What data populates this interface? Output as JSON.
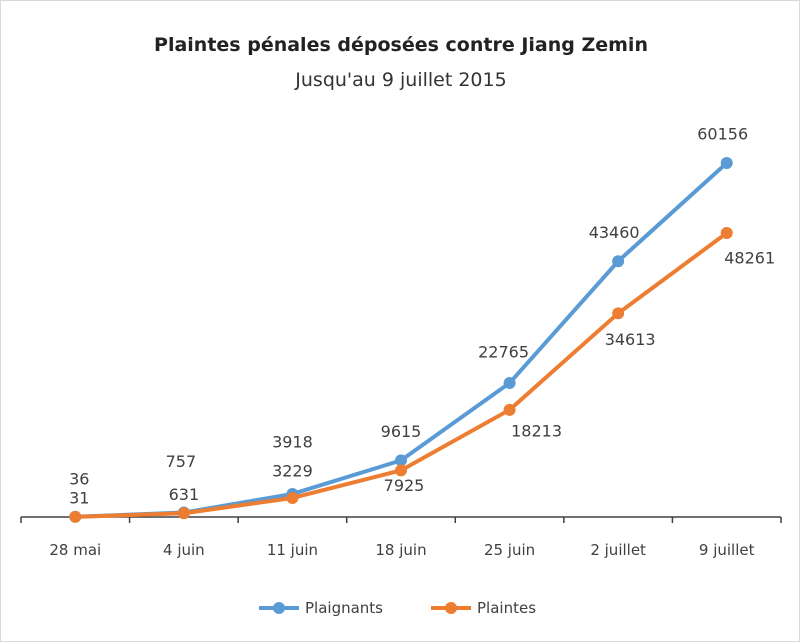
{
  "chart_data": {
    "type": "line",
    "title": "Plaintes pénales déposées contre Jiang Zemin",
    "subtitle": "Jusqu'au 9 juillet 2015",
    "categories": [
      "28 mai",
      "4 juin",
      "11 juin",
      "18 juin",
      "25 juin",
      "2 juillet",
      "9 juillet"
    ],
    "series": [
      {
        "name": "Plaignants",
        "color": "#5b9bd5",
        "values": [
          36,
          757,
          3918,
          9615,
          22765,
          43460,
          60156
        ]
      },
      {
        "name": "Plaintes",
        "color": "#ed7d31",
        "values": [
          31,
          631,
          3229,
          7925,
          18213,
          34613,
          48261
        ]
      }
    ],
    "ylim": [
      0,
      60156
    ],
    "grid": false,
    "y_axis_visible": false,
    "data_labels": true,
    "legend_position": "bottom"
  }
}
